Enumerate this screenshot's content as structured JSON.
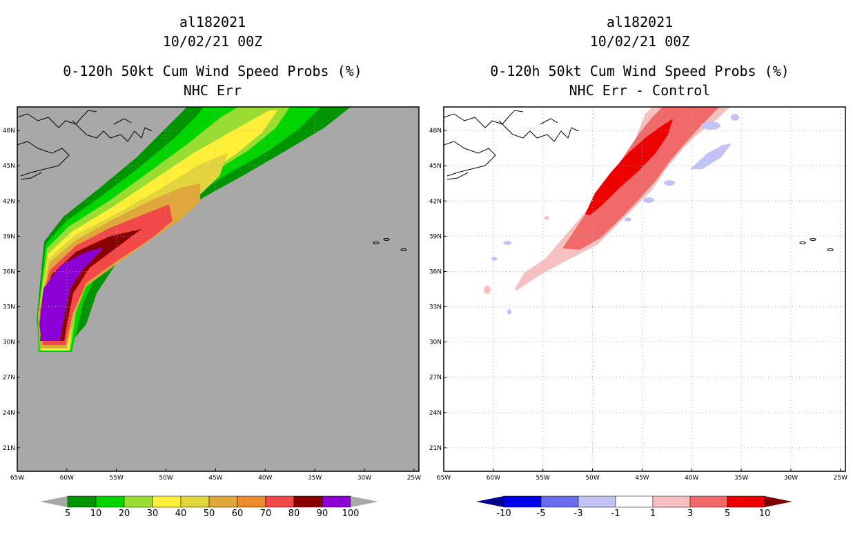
{
  "chart_data": [
    {
      "type": "heatmap",
      "title_lines": [
        "al182021",
        "10/02/21 00Z",
        "0-120h 50kt Cum Wind Speed Probs (%)",
        "NHC Err"
      ],
      "x_ticks": [
        "65W",
        "60W",
        "55W",
        "50W",
        "45W",
        "40W",
        "35W",
        "30W",
        "25W"
      ],
      "y_ticks": [
        "48N",
        "45N",
        "42N",
        "39N",
        "36N",
        "33N",
        "30N",
        "27N",
        "24N",
        "21N"
      ],
      "xlim": [
        -65,
        -24.5
      ],
      "ylim": [
        19,
        50
      ],
      "background": "#a8a8a8",
      "colorbar": {
        "labels": [
          "5",
          "10",
          "20",
          "30",
          "40",
          "50",
          "60",
          "70",
          "80",
          "90",
          "100"
        ],
        "colors": [
          "#009400",
          "#00d500",
          "#99dd33",
          "#ffef38",
          "#e1d43c",
          "#e0a83a",
          "#ec8a2c",
          "#f34848",
          "#8a0000",
          "#8a00d5"
        ],
        "end_colors": [
          "#a8a8a8",
          "#a8a8a8"
        ]
      },
      "contours": [
        {
          "level": 5,
          "color": "#009400"
        },
        {
          "level": 10,
          "color": "#00d500"
        },
        {
          "level": 20,
          "color": "#99dd33"
        },
        {
          "level": 30,
          "color": "#ffef38"
        },
        {
          "level": 40,
          "color": "#e1d43c"
        },
        {
          "level": 50,
          "color": "#e0a83a"
        },
        {
          "level": 70,
          "color": "#f34848"
        },
        {
          "level": 90,
          "color": "#8a0000"
        },
        {
          "level": 100,
          "color": "#8a00d5"
        }
      ]
    },
    {
      "type": "heatmap",
      "title_lines": [
        "al182021",
        "10/02/21 00Z",
        "0-120h 50kt Cum Wind Speed Probs (%)",
        "NHC Err - Control"
      ],
      "x_ticks": [
        "65W",
        "60W",
        "55W",
        "50W",
        "45W",
        "40W",
        "35W",
        "30W",
        "25W"
      ],
      "y_ticks": [
        "48N",
        "45N",
        "42N",
        "39N",
        "36N",
        "33N",
        "30N",
        "27N",
        "24N",
        "21N"
      ],
      "xlim": [
        -65,
        -24.5
      ],
      "ylim": [
        19,
        50
      ],
      "background": "#ffffff",
      "colorbar": {
        "labels": [
          "-10",
          "-5",
          "-3",
          "-1",
          "1",
          "3",
          "5",
          "10"
        ],
        "colors": [
          "#0000ee",
          "#6b6bee",
          "#c2c2f5",
          "#ffffff",
          "#f7c0c0",
          "#f06a6a",
          "#ee0000"
        ],
        "end_colors": [
          "#00008c",
          "#7a0000"
        ]
      },
      "contours": [
        {
          "level": 1,
          "color": "#f7c0c0"
        },
        {
          "level": 3,
          "color": "#f06a6a"
        },
        {
          "level": 5,
          "color": "#ee0000"
        },
        {
          "level": -1,
          "color": "#c2c2f5"
        }
      ]
    }
  ]
}
